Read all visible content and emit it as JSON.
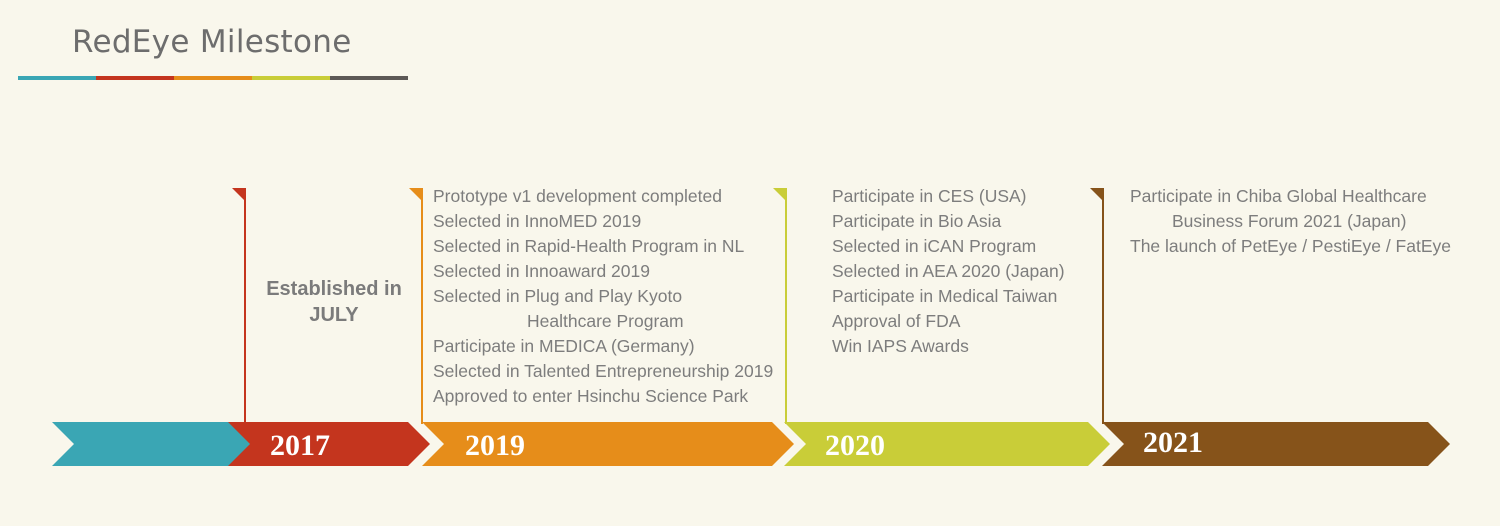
{
  "title": "RedEye Milestone",
  "title_bar_colors": [
    "#3aa6b4",
    "#c4351e",
    "#e68d1a",
    "#c9cd38",
    "#5d5956"
  ],
  "timeline": [
    {
      "year": "",
      "color": "#3aa6b4"
    },
    {
      "year": "2017",
      "color": "#c4351e"
    },
    {
      "year": "2019",
      "color": "#e68d1a"
    },
    {
      "year": "2020",
      "color": "#c9cd38"
    },
    {
      "year": "2021",
      "color": "#86531a"
    }
  ],
  "milestones": {
    "m2017": {
      "text_line1": "Established in",
      "text_line2": "JULY"
    },
    "m2019": [
      "Prototype v1 development completed",
      "Selected in InnoMED 2019",
      "Selected in Rapid-Health Program in NL",
      "Selected in Innoaward 2019",
      "Selected in Plug and Play Kyoto",
      "Healthcare Program",
      "Participate in MEDICA (Germany)",
      "Selected in Talented Entrepreneurship 2019",
      "Approved to enter Hsinchu Science Park"
    ],
    "m2020": [
      "Participate in CES (USA)",
      "Participate in Bio Asia",
      "Selected in iCAN Program",
      "Selected in AEA 2020 (Japan)",
      "Participate in Medical Taiwan",
      "Approval of FDA",
      "Win IAPS Awards"
    ],
    "m2021": [
      "Participate in Chiba Global Healthcare",
      "Business Forum 2021 (Japan)",
      "The launch of PetEye / PestiEye / FatEye"
    ]
  }
}
